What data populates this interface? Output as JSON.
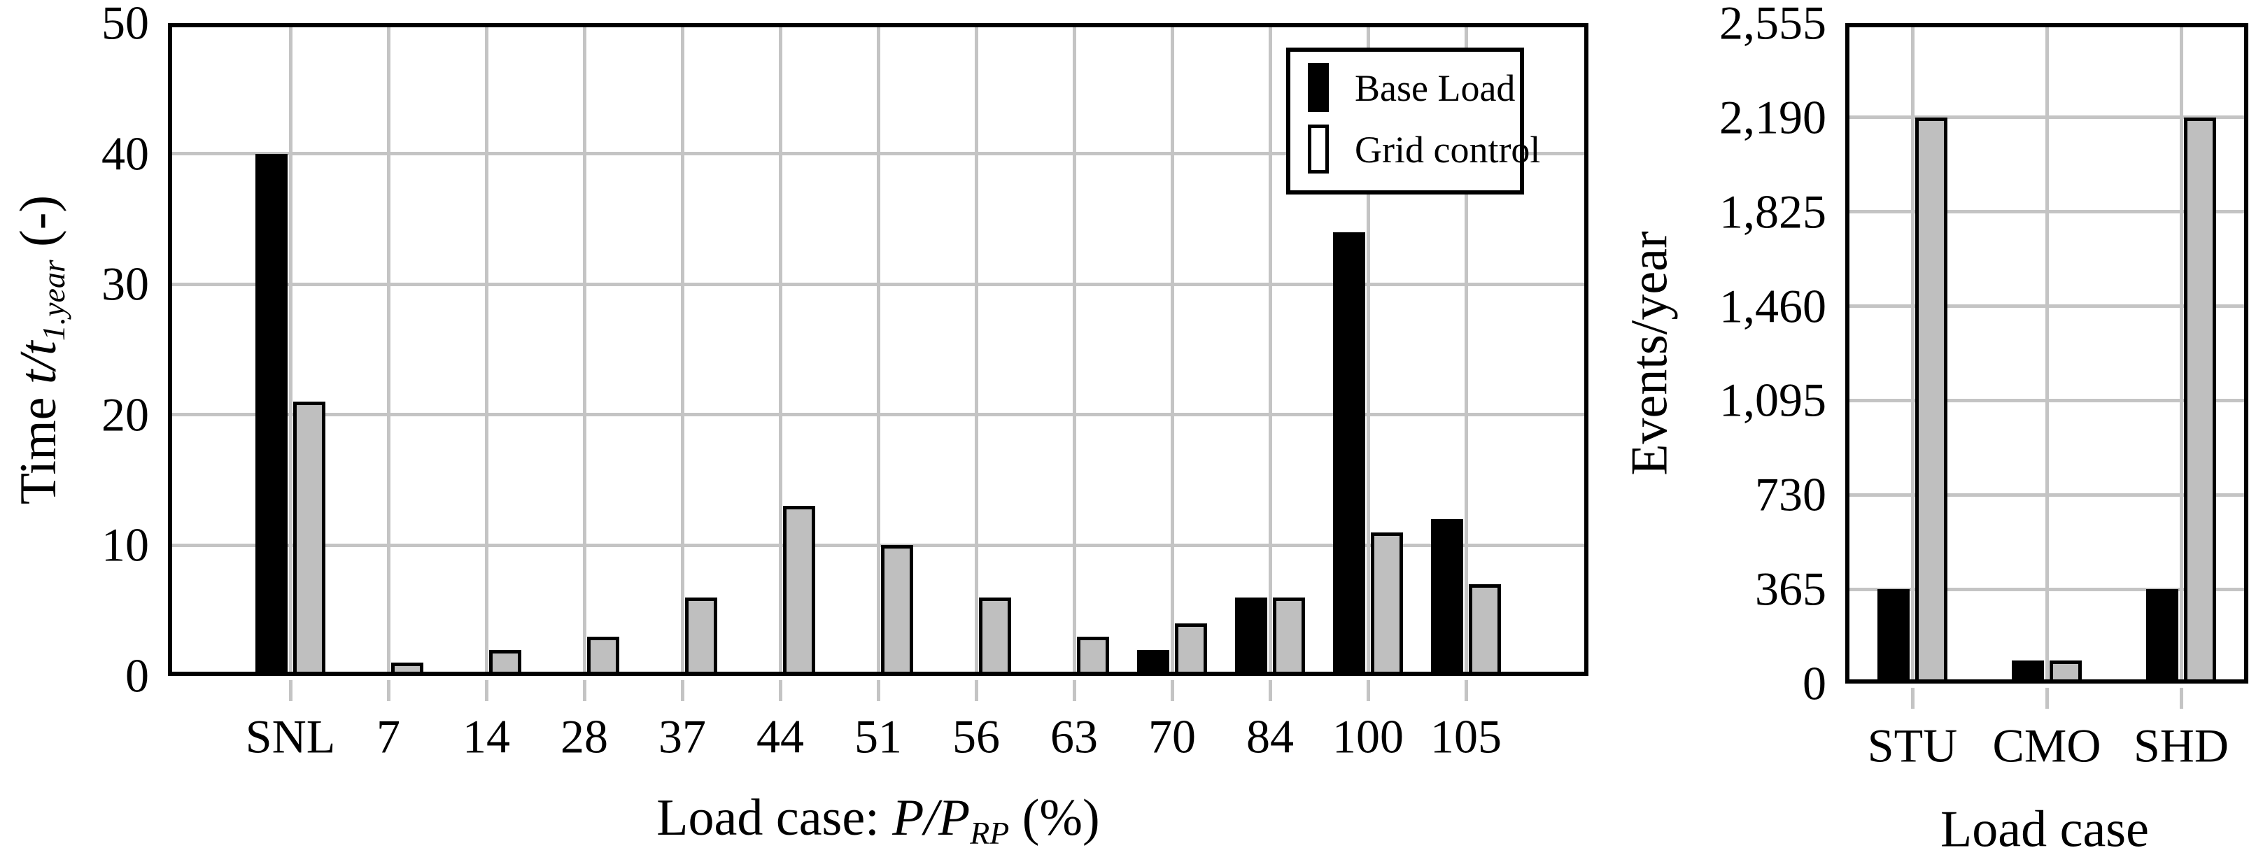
{
  "colors": {
    "base_load": "#000000",
    "grid_control": "#bfbfbf",
    "gridline": "#c4c4c4",
    "axis": "#000000",
    "background": "#ffffff"
  },
  "legend": {
    "entries": [
      "Base Load",
      "Grid control"
    ]
  },
  "chart_data": [
    {
      "type": "bar",
      "categories": [
        "SNL",
        "7",
        "14",
        "28",
        "37",
        "44",
        "51",
        "56",
        "63",
        "70",
        "84",
        "100",
        "105"
      ],
      "series": [
        {
          "name": "Base Load",
          "color": "#000000",
          "values": [
            40,
            0.2,
            0.2,
            0.2,
            0.2,
            0.2,
            0.2,
            0.2,
            0.2,
            2,
            6,
            34,
            12
          ]
        },
        {
          "name": "Grid control",
          "color": "#bfbfbf",
          "values": [
            21,
            1,
            2,
            3,
            6,
            13,
            10,
            6,
            3,
            4,
            6,
            11,
            7
          ]
        }
      ],
      "xlabel": {
        "pre": "Load case: ",
        "math": "P/P",
        "sub": "RP",
        "post": " (%)"
      },
      "ylabel": {
        "pre": "Time ",
        "math": "t/t",
        "sub": "1.year",
        "post": " (-)"
      },
      "yticks": [
        0,
        10,
        20,
        30,
        40,
        50
      ],
      "ytick_labels": [
        "0",
        "10",
        "20",
        "30",
        "40",
        "50"
      ],
      "ylim": [
        0,
        50
      ],
      "grid": true,
      "legend_position": "top-right"
    },
    {
      "type": "bar",
      "categories": [
        "STU",
        "CMO",
        "SHD"
      ],
      "series": [
        {
          "name": "Base Load",
          "color": "#000000",
          "values": [
            365,
            90,
            365
          ]
        },
        {
          "name": "Grid control",
          "color": "#bfbfbf",
          "values": [
            2190,
            90,
            2190
          ]
        }
      ],
      "xlabel": "Load case",
      "ylabel": "Events/year",
      "yticks": [
        0,
        365,
        730,
        1095,
        1460,
        1825,
        2190,
        2555
      ],
      "ytick_labels": [
        "0",
        "365",
        "730",
        "1,095",
        "1,460",
        "1,825",
        "2,190",
        "2,555"
      ],
      "ylim": [
        0,
        2555
      ],
      "grid": true
    }
  ]
}
